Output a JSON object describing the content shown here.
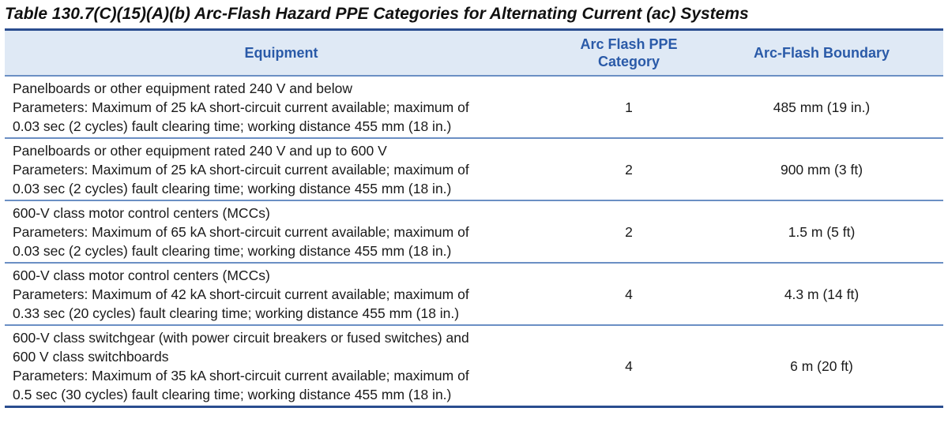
{
  "title": "Table 130.7(C)(15)(A)(b) Arc-Flash Hazard PPE Categories for Alternating Current (ac) Systems",
  "headers": {
    "equipment": "Equipment",
    "category_line1": "Arc Flash PPE",
    "category_line2": "Category",
    "boundary": "Arc-Flash Boundary"
  },
  "rows": [
    {
      "equipment_lines": [
        "Panelboards or other equipment rated 240 V and below",
        "Parameters: Maximum of 25 kA short-circuit current available; maximum of",
        "0.03 sec (2 cycles) fault clearing time; working distance 455 mm (18 in.)"
      ],
      "category": "1",
      "boundary": "485 mm (19 in.)"
    },
    {
      "equipment_lines": [
        "Panelboards or other equipment rated 240 V and up to 600 V",
        "Parameters: Maximum of 25 kA short-circuit current available; maximum of",
        "0.03 sec (2 cycles) fault clearing time; working distance 455 mm (18 in.)"
      ],
      "category": "2",
      "boundary": "900 mm (3 ft)"
    },
    {
      "equipment_lines": [
        "600-V class motor control centers (MCCs)",
        "Parameters: Maximum of 65 kA short-circuit current available; maximum of",
        "0.03 sec (2 cycles) fault clearing time; working distance 455 mm (18 in.)"
      ],
      "category": "2",
      "boundary": "1.5 m (5 ft)"
    },
    {
      "equipment_lines": [
        "600-V class motor control centers (MCCs)",
        "Parameters: Maximum of 42 kA short-circuit current available; maximum of",
        "0.33 sec (20 cycles) fault clearing time; working distance 455 mm (18 in.)"
      ],
      "category": "4",
      "boundary": "4.3 m (14 ft)"
    },
    {
      "equipment_lines": [
        "600-V class switchgear (with power circuit breakers or fused switches) and",
        "600 V class switchboards",
        "Parameters: Maximum of 35 kA short-circuit current available; maximum of",
        "0.5 sec (30 cycles) fault clearing time; working distance 455 mm (18 in.)"
      ],
      "category": "4",
      "boundary": "6 m (20 ft)"
    }
  ],
  "colors": {
    "header_text": "#2a5aa8",
    "header_bg": "#dfe9f5",
    "rule": "#2a4d8f",
    "row_divider": "#6b8fc4"
  }
}
